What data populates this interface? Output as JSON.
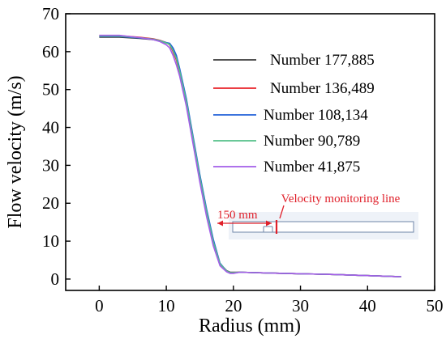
{
  "chart_data": {
    "type": "line",
    "xlabel": "Radius (mm)",
    "ylabel": "Flow velocity (m/s)",
    "xlim": [
      -5,
      50
    ],
    "ylim": [
      -3,
      70
    ],
    "xticks": [
      0,
      10,
      20,
      30,
      40,
      50
    ],
    "xtick_labels": [
      "0",
      "10",
      "20",
      "30",
      "40",
      "50"
    ],
    "yticks": [
      0,
      10,
      20,
      30,
      40,
      50,
      60,
      70
    ],
    "ytick_labels": [
      "0",
      "10",
      "20",
      "30",
      "40",
      "50",
      "60",
      "70"
    ],
    "grid": false,
    "legend_position": "right",
    "series": [
      {
        "name": "Number 177,885",
        "color": "#3a3a3a",
        "x": [
          0,
          3,
          6,
          8,
          9,
          10,
          10.5,
          11,
          11.5,
          12,
          13,
          14,
          15,
          16,
          17,
          18,
          19,
          19.5,
          20,
          21,
          25,
          30,
          35,
          40,
          45
        ],
        "y": [
          63.8,
          63.8,
          63.5,
          63.2,
          62.8,
          62.3,
          62.0,
          60.5,
          58.5,
          55,
          47,
          37,
          27,
          18,
          10,
          4,
          2.2,
          1.8,
          1.8,
          1.8,
          1.6,
          1.4,
          1.2,
          0.9,
          0.6
        ]
      },
      {
        "name": "Number 136,489",
        "color": "#e8232a",
        "x": [
          0,
          3,
          6,
          8,
          9,
          10,
          10.5,
          11,
          11.5,
          12,
          13,
          14,
          15,
          16,
          17,
          18,
          19,
          19.5,
          20,
          21,
          25,
          30,
          35,
          40,
          45
        ],
        "y": [
          64.2,
          64.2,
          63.8,
          63.4,
          63.0,
          62.4,
          61.8,
          60.0,
          57.8,
          54.5,
          46.5,
          36.5,
          26.5,
          17.5,
          9.5,
          3.8,
          2.0,
          1.6,
          1.7,
          1.8,
          1.6,
          1.4,
          1.2,
          0.9,
          0.6
        ]
      },
      {
        "name": "Number 108,134",
        "color": "#1f5fd8",
        "x": [
          0,
          3,
          6,
          8,
          9,
          10,
          10.5,
          11,
          11.5,
          12,
          13,
          14,
          15,
          16,
          17,
          18,
          19,
          19.5,
          20,
          21,
          25,
          30,
          35,
          40,
          45
        ],
        "y": [
          64.0,
          64.0,
          63.6,
          63.3,
          62.9,
          62.4,
          62.2,
          61.0,
          59.0,
          55.5,
          47.5,
          37.5,
          27.5,
          18.5,
          10.5,
          4.2,
          2.1,
          1.6,
          1.6,
          1.8,
          1.6,
          1.4,
          1.2,
          0.9,
          0.6
        ]
      },
      {
        "name": "Number 90,789",
        "color": "#55c08a",
        "x": [
          0,
          3,
          6,
          8,
          9,
          10,
          10.5,
          11,
          11.5,
          12,
          13,
          14,
          15,
          16,
          17,
          18,
          19,
          19.5,
          20,
          21,
          25,
          30,
          35,
          40,
          45
        ],
        "y": [
          64.1,
          64.1,
          63.7,
          63.3,
          62.9,
          62.3,
          61.9,
          60.3,
          58.2,
          54.8,
          46.8,
          36.8,
          26.8,
          17.8,
          9.8,
          4.0,
          2.1,
          1.7,
          1.7,
          1.8,
          1.6,
          1.4,
          1.2,
          0.9,
          0.6
        ]
      },
      {
        "name": "Number 41,875",
        "color": "#a35ee8",
        "x": [
          0,
          3,
          6,
          8,
          9,
          10,
          10.5,
          11,
          11.5,
          12,
          13,
          14,
          15,
          16,
          17,
          18,
          19,
          19.5,
          20,
          21,
          25,
          30,
          35,
          40,
          45
        ],
        "y": [
          64.3,
          64.3,
          63.7,
          63.2,
          62.7,
          61.8,
          61.0,
          59.0,
          56.5,
          53.5,
          45.5,
          35.5,
          25.5,
          16.5,
          8.8,
          3.5,
          1.9,
          1.5,
          1.5,
          1.8,
          1.6,
          1.4,
          1.2,
          0.9,
          0.6
        ]
      }
    ],
    "inset": {
      "label": "Velocity monitoring line",
      "dimension_label": "150 mm",
      "accent_color": "#e0202a"
    }
  }
}
